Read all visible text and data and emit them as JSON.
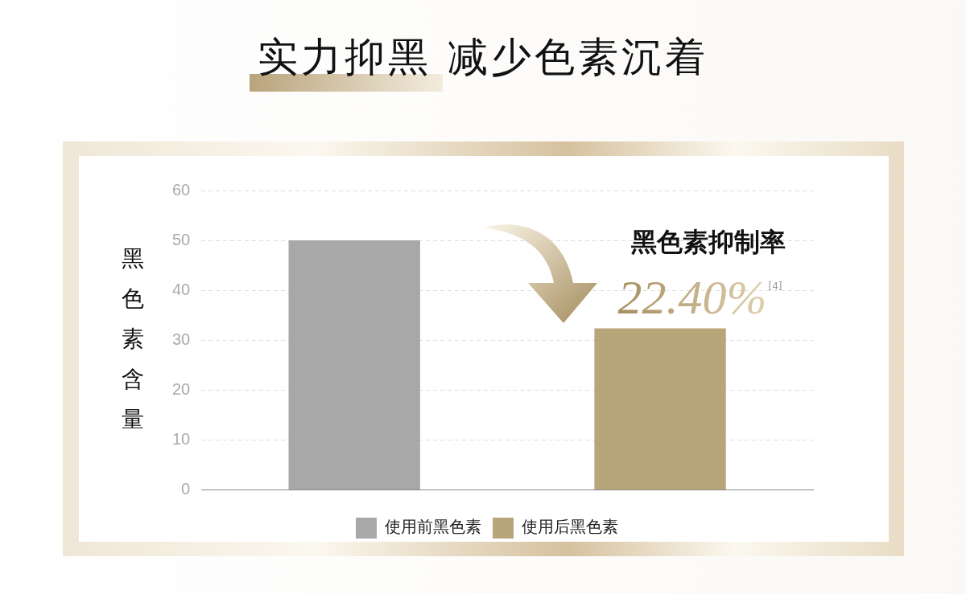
{
  "chart_data": {
    "type": "bar",
    "title": "实力抑黑 减少色素沉着",
    "ylabel": "黑色素含量",
    "categories": [
      null,
      null
    ],
    "series": [
      {
        "name": "使用前黑色素",
        "color": "#a8a8a8",
        "values": [
          50,
          null
        ]
      },
      {
        "name": "使用后黑色素",
        "color": "#b8a57a",
        "values": [
          null,
          32.4
        ]
      }
    ],
    "ylim": [
      0,
      60
    ],
    "yticks": [
      0,
      10,
      20,
      30,
      40,
      50,
      60
    ],
    "grid": "y",
    "legend": "bottom",
    "annotations": [
      "黑色素抑制率",
      "22.40%$^{[4]}$"
    ]
  }
}
